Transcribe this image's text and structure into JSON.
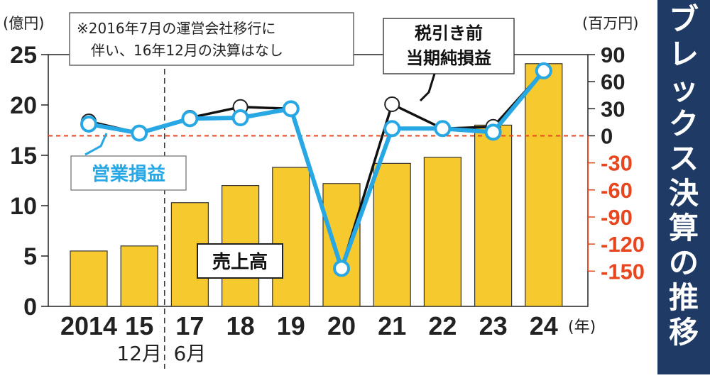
{
  "side_title": [
    "ブ",
    "レ",
    "ッ",
    "ク",
    "ス",
    "決",
    "算",
    "の",
    "推",
    "移"
  ],
  "note_lines": [
    "※2016年7月の運営会社移行に",
    "伴い、16年12月の決算はなし"
  ],
  "left_unit": "(億円)",
  "right_unit": "(百万円)",
  "x_unit": "(年)",
  "label_sales": "売上高",
  "label_op": "営業損益",
  "label_net_lines": [
    "税引き前",
    "当期純損益"
  ],
  "colors": {
    "panel": "#1f3a64",
    "bar": "#f6c92f",
    "op_line": "#27a7e3",
    "net_line": "#111111",
    "zero_line": "#e8461e",
    "neg_tick": "#e8461e"
  },
  "chart_data": {
    "type": "bar+line",
    "categories": [
      "2014",
      "15",
      "17",
      "18",
      "19",
      "20",
      "21",
      "22",
      "23",
      "24"
    ],
    "category_sublabels": [
      "",
      "12月",
      "6月",
      "",
      "",
      "",
      "",
      "",
      "",
      ""
    ],
    "left_axis": {
      "unit": "億円",
      "ylim": [
        0,
        25
      ],
      "ticks": [
        "0",
        "5",
        "10",
        "15",
        "20",
        "25"
      ]
    },
    "right_axis": {
      "unit": "百万円",
      "ylim": [
        -150,
        90
      ],
      "ticks": [
        "90",
        "60",
        "30",
        "0",
        "-30",
        "-60",
        "-90",
        "-120",
        "-150"
      ]
    },
    "series": [
      {
        "name": "売上高",
        "type": "bar",
        "axis": "left",
        "values": [
          5.5,
          6.0,
          10.3,
          12.0,
          13.8,
          12.2,
          14.2,
          14.8,
          18.0,
          24.1
        ]
      },
      {
        "name": "営業損益",
        "type": "line",
        "axis": "right",
        "values": [
          13,
          3,
          19,
          20,
          30,
          -147,
          8,
          8,
          4,
          72
        ]
      },
      {
        "name": "税引き前当期純損益",
        "type": "line",
        "axis": "right",
        "values": [
          16,
          3,
          20,
          32,
          30,
          -147,
          35,
          8,
          10,
          72
        ]
      }
    ],
    "gap_after_category": "15",
    "zero_reference_line": 0
  }
}
